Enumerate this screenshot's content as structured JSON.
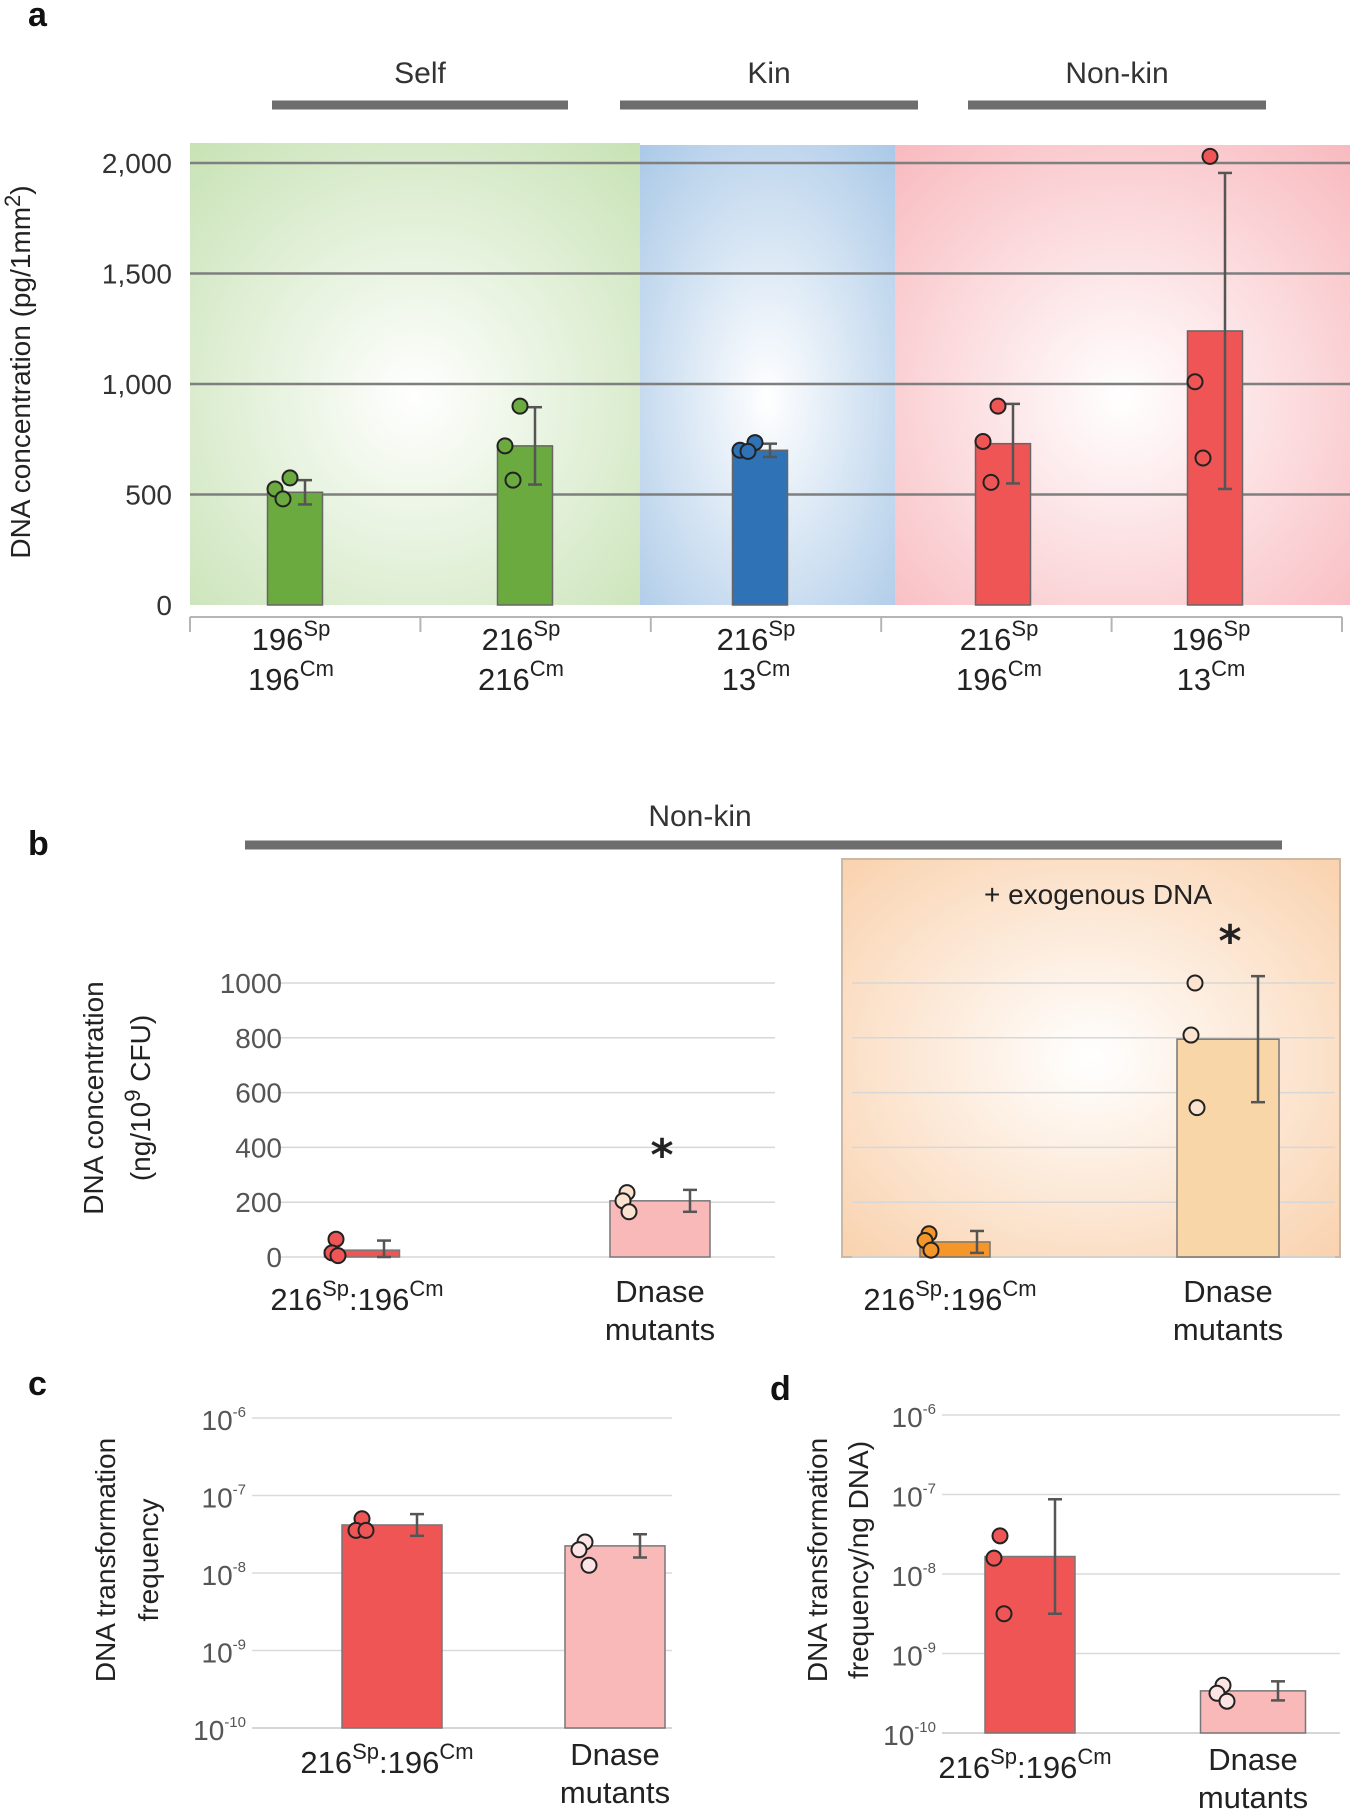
{
  "chart_data": [
    {
      "panel": "a",
      "type": "bar",
      "ylabel": "DNA concentration (pg/1mm2)",
      "ylim": [
        0,
        2000
      ],
      "yticks": [
        "0",
        "500",
        "1,000",
        "1,500",
        "2,000"
      ],
      "groups": [
        {
          "label": "Self",
          "color": "#6aaa3f"
        },
        {
          "label": "Kin",
          "color": "#2f72b5"
        },
        {
          "label": "Non-kin",
          "color": "#ef5555"
        }
      ],
      "categories": [
        {
          "top": "196",
          "top_sup": "Sp",
          "bottom": "196",
          "bottom_sup": "Cm",
          "group": 0,
          "value": 510,
          "err": 55,
          "points": [
            575,
            525,
            480
          ]
        },
        {
          "top": "216",
          "top_sup": "Sp",
          "bottom": "216",
          "bottom_sup": "Cm",
          "group": 0,
          "value": 720,
          "err": 175,
          "points": [
            900,
            720,
            565
          ]
        },
        {
          "top": "216",
          "top_sup": "Sp",
          "bottom": "13",
          "bottom_sup": "Cm",
          "group": 1,
          "value": 700,
          "err": 30,
          "points": [
            735,
            700,
            695
          ]
        },
        {
          "top": "216",
          "top_sup": "Sp",
          "bottom": "196",
          "bottom_sup": "Cm",
          "group": 2,
          "value": 730,
          "err": 180,
          "points": [
            900,
            740,
            555
          ]
        },
        {
          "top": "196",
          "top_sup": "Sp",
          "bottom": "13",
          "bottom_sup": "Cm",
          "group": 2,
          "value": 1240,
          "err": 715,
          "points": [
            2030,
            1010,
            665
          ]
        }
      ]
    },
    {
      "panel": "b",
      "type": "bar",
      "header": "Non-kin",
      "ylabel_1": "DNA concentration",
      "ylabel_2": "(ng/10",
      "ylabel_sup": "9",
      "ylabel_3": " CFU)",
      "ylim": [
        0,
        1000
      ],
      "yticks": [
        "0",
        "200",
        "400",
        "600",
        "800",
        "1000"
      ],
      "sub_panels": [
        {
          "title": "",
          "categories": [
            "216Sp:196Cm",
            "Dnase mutants"
          ],
          "values": [
            25,
            205
          ],
          "errors": [
            35,
            40
          ],
          "points": [
            [
              65,
              15,
              5
            ],
            [
              235,
              205,
              165
            ]
          ],
          "colors": [
            "#ef5555",
            "#f9b9b9"
          ],
          "significant": [
            false,
            true
          ]
        },
        {
          "title": "+ exogenous DNA",
          "categories": [
            "216Sp:196Cm",
            "Dnase mutants"
          ],
          "values": [
            55,
            795
          ],
          "errors": [
            40,
            230
          ],
          "points": [
            [
              85,
              60,
              25
            ],
            [
              1000,
              810,
              545
            ]
          ],
          "colors": [
            "#f5962a",
            "#f8d6a8"
          ],
          "significant": [
            false,
            true
          ]
        }
      ],
      "star": "*"
    },
    {
      "panel": "c",
      "type": "bar",
      "scale": "log",
      "ylabel_1": "DNA transformation",
      "ylabel_2": "frequency",
      "ylim_exp": [
        -10,
        -6
      ],
      "categories": [
        "216Sp:196Cm",
        "Dnase mutants"
      ],
      "values_exp": [
        -7.38,
        -7.65
      ],
      "errors_exp": [
        0.14,
        0.15
      ],
      "points_exp": [
        [
          -7.3,
          -7.45,
          -7.45
        ],
        [
          -7.6,
          -7.7,
          -7.9
        ]
      ],
      "colors": [
        "#ef5555",
        "#f9b9b9"
      ]
    },
    {
      "panel": "d",
      "type": "bar",
      "scale": "log",
      "ylabel_1": "DNA transformation",
      "ylabel_2": "frequency/ng DNA)",
      "ylim_exp": [
        -10,
        -6
      ],
      "categories": [
        "216Sp:196Cm",
        "Dnase mutants"
      ],
      "values_exp": [
        -7.78,
        -9.47
      ],
      "errors_exp": [
        0.72,
        0.12
      ],
      "points_exp": [
        [
          -7.52,
          -7.8,
          -8.5
        ],
        [
          -9.4,
          -9.5,
          -9.6
        ]
      ],
      "colors": [
        "#ef5555",
        "#f9b9b9"
      ]
    }
  ],
  "labels": {
    "a": "a",
    "b": "b",
    "c": "c",
    "d": "d",
    "cat_main": "216",
    "cat_sp": "Sp",
    "cat_mid": ":196",
    "cat_cm": "Cm",
    "dnase_1": "Dnase",
    "dnase_2": "mutants",
    "ten": "10",
    "exp_labels": [
      "-6",
      "-7",
      "-8",
      "-9",
      "-10"
    ],
    "a_ylabel_main": "DNA concentration (pg/1mm",
    "a_ylabel_sup": "2",
    "a_ylabel_end": ")"
  }
}
